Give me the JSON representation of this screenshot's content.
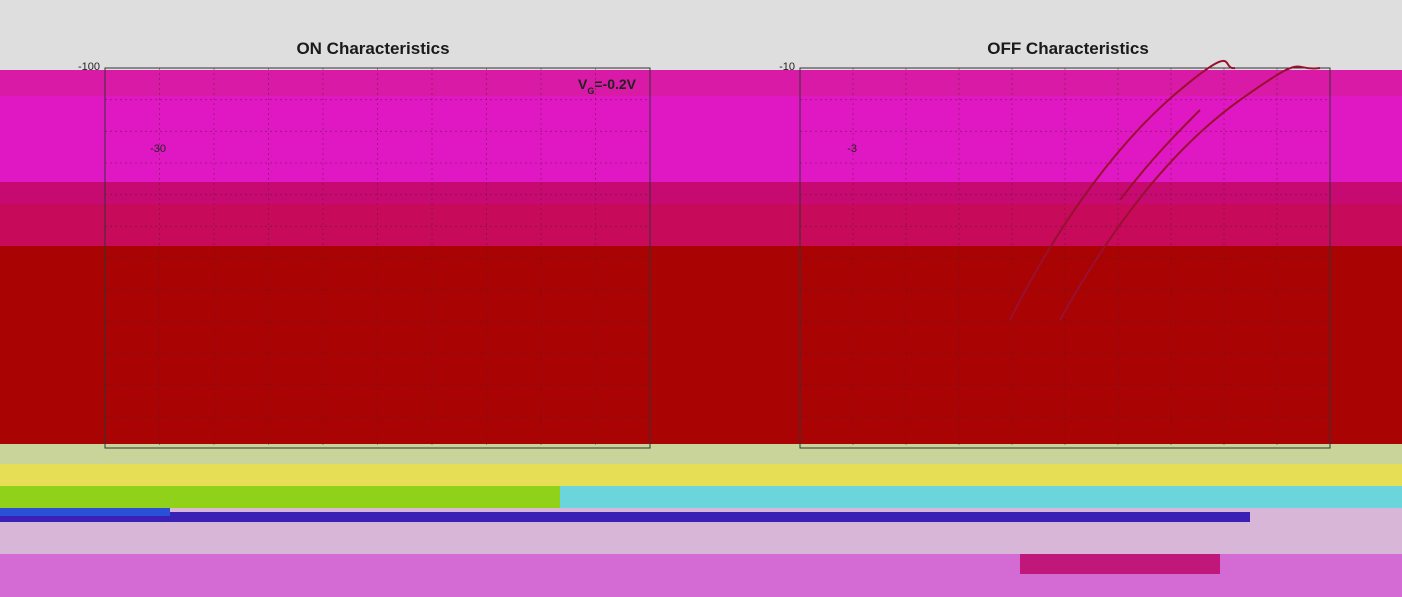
{
  "colors": {
    "top_band": "#dedede",
    "band_magenta_1": "#d91aa6",
    "band_magenta_2": "#e018c4",
    "band_crimson": "#c60a72",
    "band_rose": "#c70a5a",
    "band_red": "#a90303",
    "band_sage": "#c8d49a",
    "band_yellow": "#e6df55",
    "band_green": "#90d21a",
    "band_cyan": "#6ad6dc",
    "band_lavender": "#d8b6d8",
    "band_orchid": "#d46ad4",
    "curve_color": "#9a1030"
  },
  "chart_data": [
    {
      "type": "line",
      "title": "ON Characteristics",
      "yticks": [
        "-100",
        "-30"
      ],
      "annotation": "V =-0.2V",
      "annotation_subscript": "G",
      "series": []
    },
    {
      "type": "line",
      "title": "OFF Characteristics",
      "yticks": [
        "-10",
        "-3"
      ],
      "series": []
    }
  ]
}
